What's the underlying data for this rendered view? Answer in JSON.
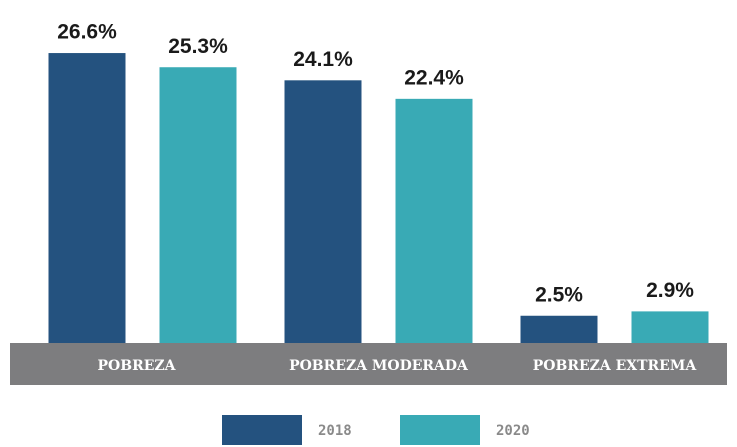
{
  "chart_data": {
    "type": "bar",
    "categories": [
      "POBREZA",
      "POBREZA MODERADA",
      "POBREZA EXTREMA"
    ],
    "series": [
      {
        "name": "2018",
        "color": "#24527f",
        "values": [
          26.6,
          24.1,
          2.5
        ],
        "value_labels": [
          "26.6%",
          "24.1%",
          "2.5%"
        ]
      },
      {
        "name": "2020",
        "color": "#39aab5",
        "values": [
          25.3,
          22.4,
          2.9
        ],
        "value_labels": [
          "25.3%",
          "22.4%",
          "2.9%"
        ]
      }
    ],
    "ylim": [
      0,
      30
    ],
    "legend": "bottom"
  }
}
